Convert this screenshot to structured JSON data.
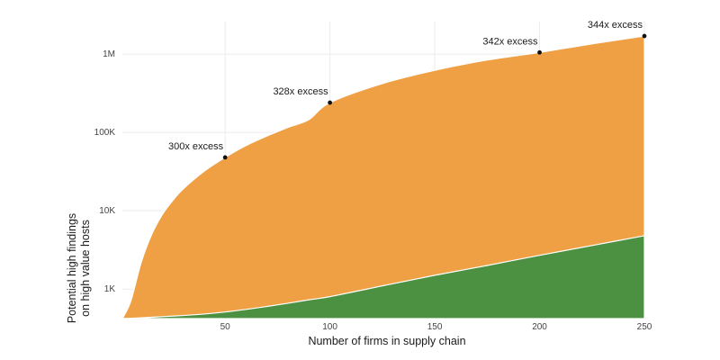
{
  "chart_data": {
    "type": "area",
    "xlabel": "Number of firms in supply chain",
    "ylabel": [
      "Potential high findings",
      "on high value hosts"
    ],
    "x_ticks": [
      50,
      100,
      150,
      200,
      250
    ],
    "y_scale": "log",
    "y_ticks": [
      {
        "value": 1000,
        "label": "1K"
      },
      {
        "value": 10000,
        "label": "10K"
      },
      {
        "value": 100000,
        "label": "100K"
      },
      {
        "value": 1000000,
        "label": "1M"
      }
    ],
    "xlim": [
      1,
      250
    ],
    "ylim": [
      420,
      2600000
    ],
    "grid": true,
    "legend": "none",
    "colors": {
      "total": "#EFA044",
      "baseline": "#4C9141",
      "marker": "#111111",
      "grid": "#ececec"
    },
    "series": [
      {
        "x": [
          1,
          5,
          10,
          15,
          20,
          25,
          30,
          40,
          50,
          60,
          70,
          80,
          90,
          100,
          125,
          150,
          175,
          200,
          225,
          250
        ],
        "values": [
          420,
          700,
          2200,
          5000,
          8900,
          13500,
          19000,
          32000,
          48000,
          68000,
          90000,
          116000,
          146000,
          240000,
          420000,
          620000,
          840000,
          1050000,
          1350000,
          1700000
        ]
      },
      {
        "x": [
          1,
          10,
          20,
          30,
          40,
          50,
          60,
          70,
          80,
          90,
          100,
          125,
          150,
          175,
          200,
          225,
          250
        ],
        "values": [
          420,
          430,
          445,
          460,
          480,
          510,
          550,
          600,
          660,
          730,
          800,
          1100,
          1500,
          2000,
          2700,
          3600,
          4800
        ]
      }
    ],
    "annotations": [
      {
        "x": 50,
        "y": 48000,
        "label": "300x excess"
      },
      {
        "x": 100,
        "y": 240000,
        "label": "328x excess"
      },
      {
        "x": 200,
        "y": 1050000,
        "label": "342x excess"
      },
      {
        "x": 250,
        "y": 1700000,
        "label": "344x excess"
      }
    ]
  }
}
